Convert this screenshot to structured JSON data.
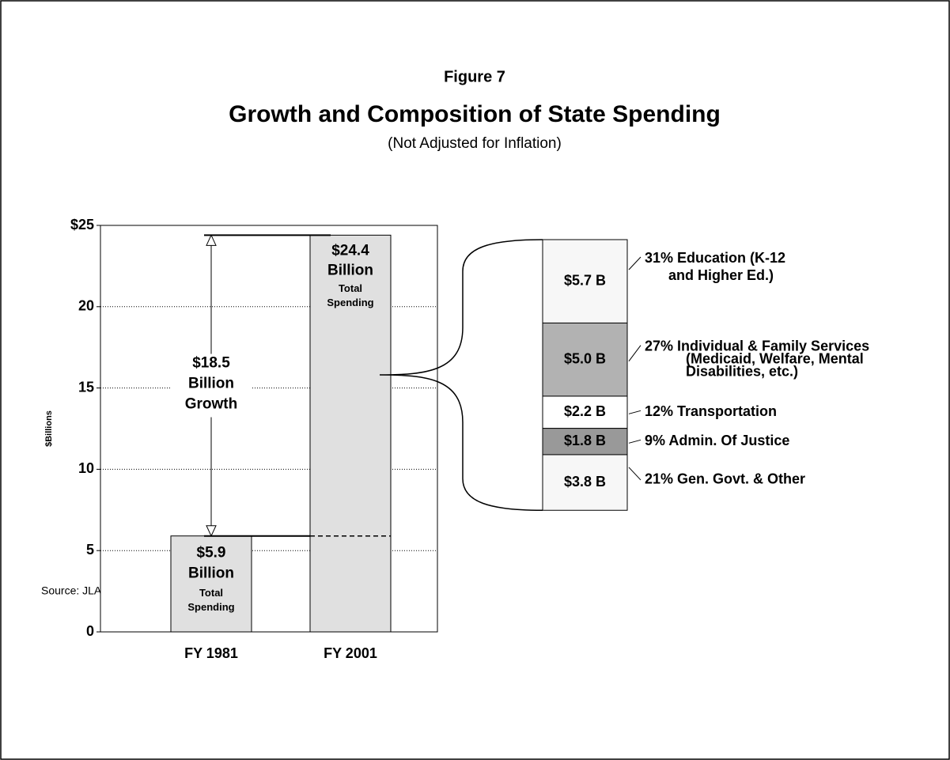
{
  "chart_data": {
    "type": "bar",
    "figure_label": "Figure 7",
    "title": "Growth and Composition of State Spending",
    "subtitle": "(Not Adjusted for Inflation)",
    "y_axis_label": "$Billions",
    "categories": [
      "FY 1981",
      "FY 2001"
    ],
    "values": [
      5.9,
      24.4
    ],
    "value_labels": [
      "$5.9",
      "$24.4"
    ],
    "bar_label_lines": [
      "Billion",
      "Total",
      "Spending"
    ],
    "color": "#e0e0e0",
    "ylim": [
      0,
      25
    ],
    "yticks": [
      0,
      5,
      10,
      15,
      20,
      {
        "value": 25,
        "label": "$25"
      }
    ],
    "grid": true,
    "growth": {
      "value": 18.5,
      "value_label": "$18.5",
      "lines": [
        "Billion",
        "Growth"
      ]
    },
    "breakdown": {
      "segments": [
        {
          "value": 5.7,
          "value_label": "$5.7 B",
          "color": "#f7f7f7",
          "label_lines": [
            "31% Education (K-12",
            "and Higher Ed.)"
          ]
        },
        {
          "value": 5.0,
          "value_label": "$5.0 B",
          "color": "#b2b2b2",
          "label_lines": [
            "27%  Individual & Family Services",
            "(Medicaid, Welfare, Mental",
            "Disabilities, etc.)"
          ]
        },
        {
          "value": 2.2,
          "value_label": "$2.2 B",
          "color": "#ffffff",
          "label_lines": [
            "12% Transportation"
          ]
        },
        {
          "value": 1.8,
          "value_label": "$1.8 B",
          "color": "#999999",
          "label_lines": [
            "9% Admin. Of Justice"
          ]
        },
        {
          "value": 3.8,
          "value_label": "$3.8 B",
          "color": "#f7f7f7",
          "label_lines": [
            "21% Gen. Govt. & Other"
          ]
        }
      ]
    },
    "source": "Source: JLARC staff analysis."
  }
}
